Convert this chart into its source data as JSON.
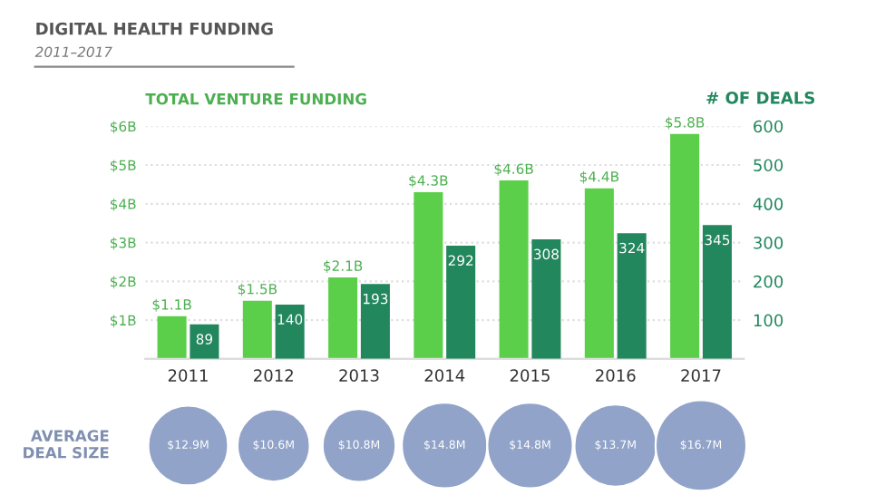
{
  "chart_data": [
    {
      "type": "bar",
      "title": "DIGITAL HEALTH FUNDING",
      "subtitle": "2011–2017",
      "ylabel": "TOTAL VENTURE FUNDING",
      "y2label": "# OF DEALS",
      "categories": [
        "2011",
        "2012",
        "2013",
        "2014",
        "2015",
        "2016",
        "2017"
      ],
      "series": [
        {
          "color": "#5ccf4a",
          "values": [
            1.1,
            1.5,
            2.1,
            4.3,
            4.6,
            4.4,
            5.8
          ],
          "value_labels": [
            "$1.1B",
            "$1.5B",
            "$2.1B",
            "$4.3B",
            "$4.6B",
            "$4.4B",
            "$5.8B"
          ]
        },
        {
          "color": "#23875e",
          "axis": "y2",
          "values": [
            89,
            140,
            193,
            292,
            308,
            324,
            345
          ],
          "value_labels": [
            "89",
            "140",
            "193",
            "292",
            "308",
            "324",
            "345"
          ]
        }
      ],
      "ylim": [
        0,
        6
      ],
      "yticks": [
        {
          "value": 1,
          "label": "$1B"
        },
        {
          "value": 2,
          "label": "$2B"
        },
        {
          "value": 3,
          "label": "$3B"
        },
        {
          "value": 4,
          "label": "$4B"
        },
        {
          "value": 5,
          "label": "$5B"
        },
        {
          "value": 6,
          "label": "$6B"
        }
      ],
      "y2lim": [
        0,
        600
      ],
      "y2ticks": [
        100,
        200,
        300,
        400,
        500,
        600
      ],
      "grid": "y",
      "legend": false
    },
    {
      "type": "other",
      "ylabel": "AVERAGE\nDEAL SIZE",
      "categories": [
        null,
        null,
        null,
        null,
        null,
        null,
        null
      ],
      "color": "#91a3c8",
      "values": [
        12.9,
        10.6,
        10.8,
        14.8,
        14.8,
        13.7,
        16.7
      ],
      "value_labels": [
        "$12.9M",
        "$10.6M",
        "$10.8M",
        "$14.8M",
        "$14.8M",
        "$13.7M",
        "$16.7M"
      ]
    }
  ]
}
